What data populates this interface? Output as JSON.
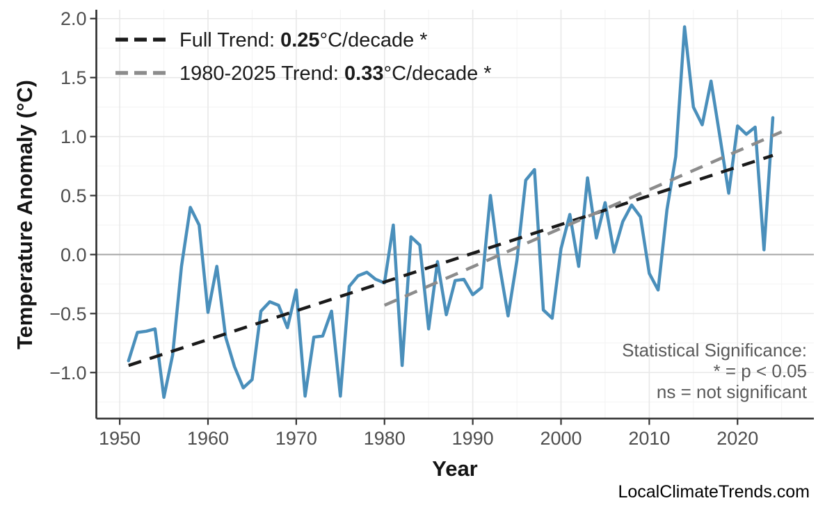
{
  "watermark": "LocalClimateTrends.com",
  "chart_data": {
    "type": "line",
    "title": "",
    "xlabel": "Year",
    "ylabel": "Temperature Anomaly (°C)",
    "xlim": [
      1947.35,
      2028.65
    ],
    "ylim": [
      -1.39,
      2.075
    ],
    "grid": "major light-gray on white, faint minor gridlines",
    "legend_position": "top-left inside panel",
    "colors": {
      "series": "#4A8FBB",
      "full_trend": "#1a1a1a",
      "recent_trend": "#8c8c8c",
      "zero_line": "#a6a6a6",
      "grid_major": "#e8e8e8",
      "grid_minor": "#f3f3f3",
      "axis_line": "#2b2b2b",
      "tick_text": "#4d4d4d",
      "annotation_text": "#595959"
    },
    "x_ticks": [
      {
        "v": 1950,
        "label": "1950"
      },
      {
        "v": 1960,
        "label": "1960"
      },
      {
        "v": 1970,
        "label": "1970"
      },
      {
        "v": 1980,
        "label": "1980"
      },
      {
        "v": 1990,
        "label": "1990"
      },
      {
        "v": 2000,
        "label": "2000"
      },
      {
        "v": 2010,
        "label": "2010"
      },
      {
        "v": 2020,
        "label": "2020"
      }
    ],
    "y_ticks": [
      {
        "v": 2.0,
        "label": "2.0"
      },
      {
        "v": 1.5,
        "label": "1.5"
      },
      {
        "v": 1.0,
        "label": "1.0"
      },
      {
        "v": 0.5,
        "label": "0.5"
      },
      {
        "v": 0.0,
        "label": "0.0"
      },
      {
        "v": -0.5,
        "label": "−0.5"
      },
      {
        "v": -1.0,
        "label": "−1.0"
      }
    ],
    "x_minor_ticks": [
      1955,
      1965,
      1975,
      1985,
      1995,
      2005,
      2015,
      2025
    ],
    "y_minor_ticks": [
      -1.25,
      -0.75,
      -0.25,
      0.25,
      0.75,
      1.25,
      1.75
    ],
    "zero_reference_line": 0.0,
    "x": [
      1951,
      1952,
      1953,
      1954,
      1955,
      1956,
      1957,
      1958,
      1959,
      1960,
      1961,
      1962,
      1963,
      1964,
      1965,
      1966,
      1967,
      1968,
      1969,
      1970,
      1971,
      1972,
      1973,
      1974,
      1975,
      1976,
      1977,
      1978,
      1979,
      1980,
      1981,
      1982,
      1983,
      1984,
      1985,
      1986,
      1987,
      1988,
      1989,
      1990,
      1991,
      1992,
      1993,
      1994,
      1995,
      1996,
      1997,
      1998,
      1999,
      2000,
      2001,
      2002,
      2003,
      2004,
      2005,
      2006,
      2007,
      2008,
      2009,
      2010,
      2011,
      2012,
      2013,
      2014,
      2015,
      2016,
      2017,
      2018,
      2019,
      2020,
      2021,
      2022,
      2023,
      2024
    ],
    "series": [
      {
        "name": "annual temperature anomaly",
        "color": "#4A8FBB",
        "values": [
          -0.9,
          -0.66,
          -0.65,
          -0.63,
          -1.21,
          -0.85,
          -0.1,
          0.4,
          0.25,
          -0.49,
          -0.1,
          -0.7,
          -0.95,
          -1.13,
          -1.06,
          -0.48,
          -0.4,
          -0.43,
          -0.62,
          -0.3,
          -1.2,
          -0.7,
          -0.69,
          -0.48,
          -1.2,
          -0.27,
          -0.18,
          -0.15,
          -0.21,
          -0.24,
          0.25,
          -0.94,
          0.15,
          0.08,
          -0.63,
          -0.06,
          -0.51,
          -0.22,
          -0.21,
          -0.34,
          -0.28,
          0.5,
          -0.08,
          -0.52,
          -0.05,
          0.63,
          0.72,
          -0.47,
          -0.54,
          0.05,
          0.34,
          -0.1,
          0.65,
          0.14,
          0.44,
          0.02,
          0.28,
          0.42,
          0.32,
          -0.16,
          -0.3,
          0.38,
          0.83,
          1.93,
          1.25,
          1.1,
          1.47,
          1.0,
          0.52,
          1.09,
          1.02,
          1.08,
          0.04,
          1.16
        ]
      }
    ],
    "trends": [
      {
        "name": "full trend",
        "rate_per_decade": 0.25,
        "x": [
          1951,
          2024
        ],
        "values": [
          -0.94,
          0.84
        ],
        "color": "#1a1a1a",
        "style": "dashed"
      },
      {
        "name": "1980-2025 trend",
        "rate_per_decade": 0.33,
        "x": [
          1980,
          2025
        ],
        "values": [
          -0.43,
          1.04
        ],
        "color": "#8c8c8c",
        "style": "dashed"
      }
    ],
    "legend": {
      "entries": [
        {
          "prefix": "Full Trend: ",
          "value": "0.25",
          "suffix": "°C/decade *",
          "color": "#1a1a1a"
        },
        {
          "prefix": "1980-2025 Trend: ",
          "value": "0.33",
          "suffix": "°C/decade *",
          "color": "#8c8c8c"
        }
      ]
    },
    "annotations": {
      "lines": [
        "Statistical Significance:",
        "* = p < 0.05",
        "ns = not significant"
      ]
    }
  }
}
